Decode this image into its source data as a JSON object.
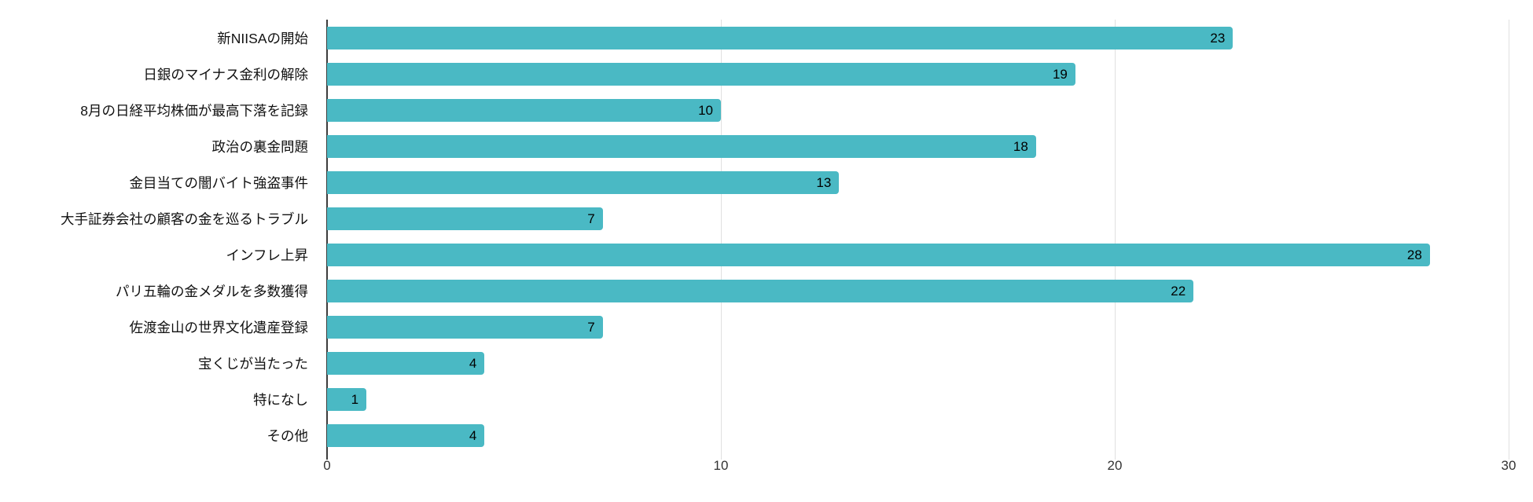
{
  "chart_data": {
    "type": "bar",
    "orientation": "horizontal",
    "title": "",
    "xlabel": "",
    "ylabel": "",
    "categories": [
      "新NIISAの開始",
      "日銀のマイナス金利の解除",
      "8月の日経平均株価が最高下落を記録",
      "政治の裏金問題",
      "金目当ての闇バイト強盗事件",
      "大手証券会社の顧客の金を巡るトラブル",
      "インフレ上昇",
      "パリ五輪の金メダルを多数獲得",
      "佐渡金山の世界文化遺産登録",
      "宝くじが当たった",
      "特になし",
      "その他"
    ],
    "values": [
      23,
      19,
      10,
      18,
      13,
      7,
      28,
      22,
      7,
      4,
      1,
      4
    ],
    "xlim": [
      0,
      30
    ],
    "xticks": [
      0,
      10,
      20,
      30
    ],
    "grid": "vertical-only",
    "legend": "none",
    "bar_color": "#4ab9c4",
    "value_label_color": "#000000",
    "axis_line_color": "#3c3c3c",
    "gridline_color": "#e0e0e0",
    "background_color": "#ffffff"
  }
}
